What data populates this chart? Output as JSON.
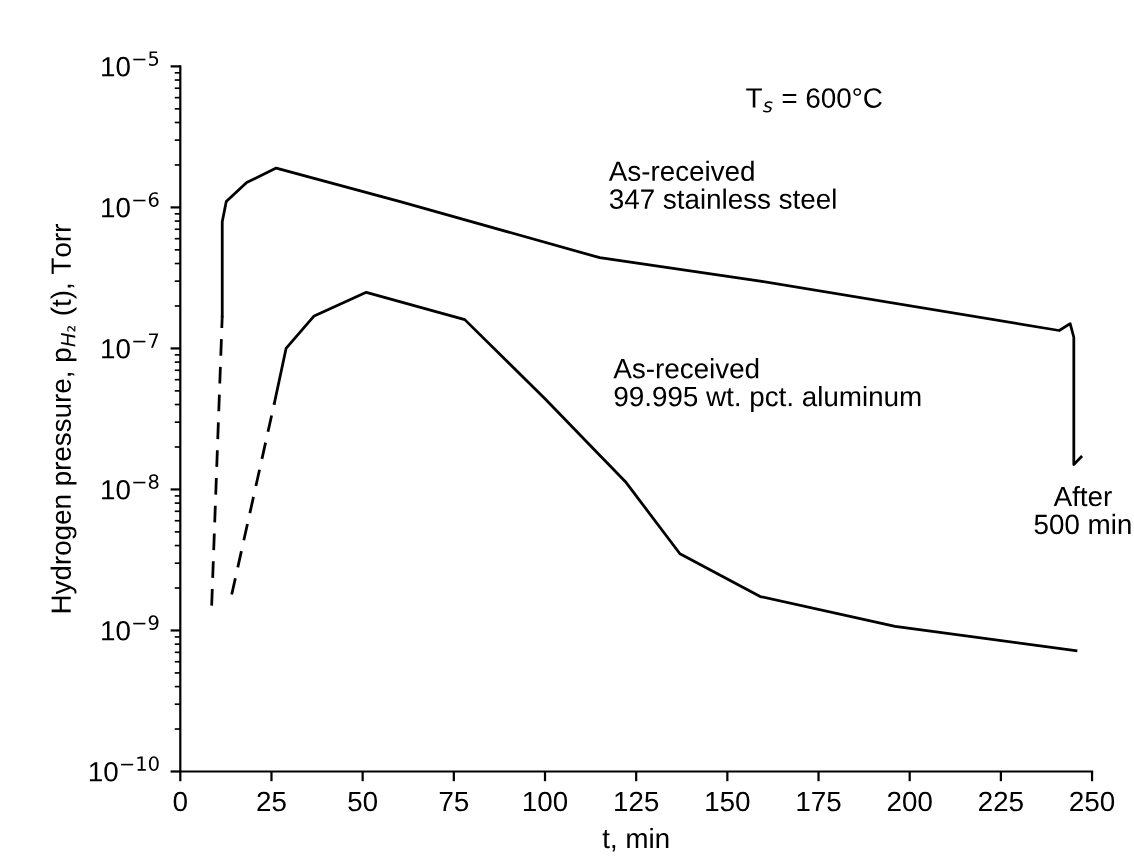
{
  "chart_data": {
    "type": "line",
    "xlabel": "t, min",
    "ylabel": "Hydrogen pressure, p$_{H₂}$ (t), Torr",
    "log": "y",
    "xlim": [
      0,
      250
    ],
    "ylim": [
      1e-10,
      1e-05
    ],
    "xticks": [
      0,
      25,
      50,
      75,
      100,
      125,
      150,
      175,
      200,
      225,
      250
    ],
    "yticks": [
      {
        "value": 1e-10,
        "label": "10$^{−10}$"
      },
      {
        "value": 1e-09,
        "label": "10$^{−9}$"
      },
      {
        "value": 1e-08,
        "label": "10$^{−8}$"
      },
      {
        "value": 1e-07,
        "label": "10$^{−7}$"
      },
      {
        "value": 1e-06,
        "label": "10$^{−6}$"
      },
      {
        "value": 1e-05,
        "label": "10$^{−5}$"
      }
    ],
    "grid": false,
    "legend": false,
    "marker": "none",
    "series": [
      {
        "name": "As-received\n347 stainless steel",
        "color": "#000000",
        "line_style": "solid",
        "x": [
          11.5,
          11.5,
          12.6,
          18.2,
          26.3,
          60.3,
          115,
          159,
          241,
          244,
          245,
          245,
          247
        ],
        "values": [
          1.7e-07,
          7.9e-07,
          1.1e-06,
          1.5e-06,
          1.9e-06,
          1.1e-06,
          4.4e-07,
          3e-07,
          1.34e-07,
          1.5e-07,
          1.2e-07,
          1.5e-08,
          1.7e-08
        ]
      },
      {
        "color": "#000000",
        "line_style": "dashed",
        "x": [
          8.6,
          11.5
        ],
        "values": [
          1.5e-09,
          1.7e-07
        ]
      },
      {
        "name": "As-received\n99.995 wt. pct. aluminum",
        "color": "#000000",
        "line_style": "solid",
        "x": [
          25.8,
          29,
          36.7,
          51,
          78,
          100,
          115,
          122,
          137,
          159,
          196,
          245.6
        ],
        "values": [
          4.1e-08,
          1e-07,
          1.7e-07,
          2.5e-07,
          1.6e-07,
          4.4e-08,
          1.75e-08,
          1.14e-08,
          3.5e-09,
          1.74e-09,
          1.07e-09,
          7.2e-10
        ]
      },
      {
        "color": "#000000",
        "line_style": "dashed",
        "x": [
          14.1,
          25.8
        ],
        "values": [
          1.8e-09,
          4.1e-08
        ]
      }
    ],
    "annotations": [
      "T$_{s}$ = 600°C",
      "After\n500 min"
    ]
  }
}
